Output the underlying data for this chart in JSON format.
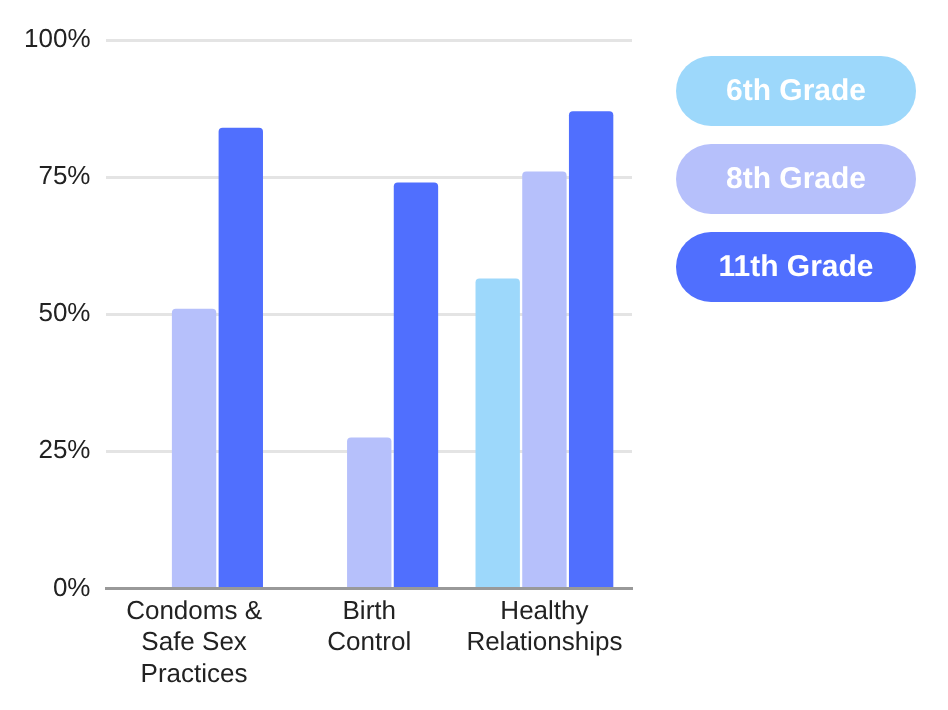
{
  "chart_data": {
    "type": "bar",
    "categories": [
      "Condoms & Safe Sex Practices",
      "Birth Control",
      "Healthy Relationships"
    ],
    "series": [
      {
        "name": "6th Grade",
        "color": "#9dd8fb",
        "values": [
          null,
          null,
          56.5
        ]
      },
      {
        "name": "8th Grade",
        "color": "#b6c0fb",
        "values": [
          51,
          27.5,
          76
        ]
      },
      {
        "name": "11th Grade",
        "color": "#506ffe",
        "values": [
          84,
          74,
          87
        ]
      }
    ],
    "ylim": [
      0,
      100
    ],
    "yticks": [
      {
        "value": 0,
        "label": "0%"
      },
      {
        "value": 25,
        "label": "25%"
      },
      {
        "value": 50,
        "label": "50%"
      },
      {
        "value": 75,
        "label": "75%"
      },
      {
        "value": 100,
        "label": "100%"
      }
    ],
    "grid": "y",
    "legend": "right"
  }
}
